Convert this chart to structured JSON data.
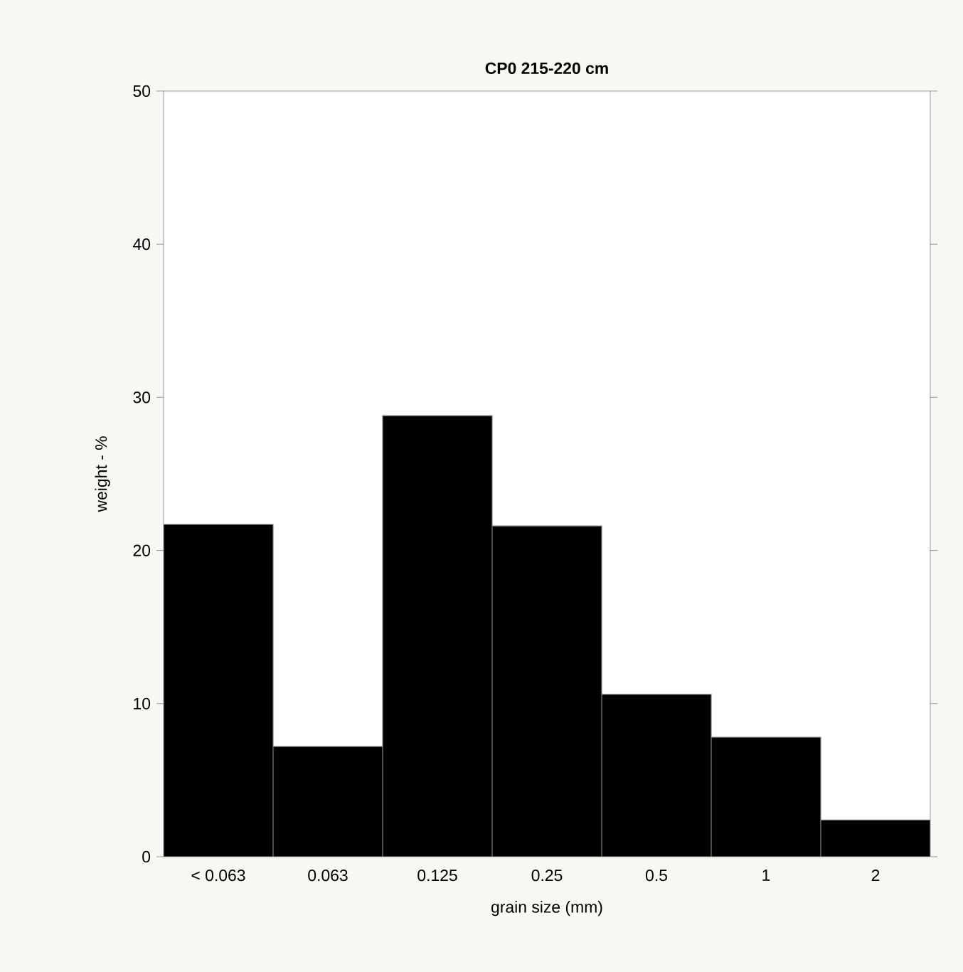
{
  "chart_data": {
    "type": "bar",
    "title": "CP0 215-220 cm",
    "xlabel": "grain size (mm)",
    "ylabel": "weight - %",
    "categories": [
      "< 0.063",
      "0.063",
      "0.125",
      "0.25",
      "0.5",
      "1",
      "2"
    ],
    "values": [
      21.7,
      7.2,
      28.8,
      21.6,
      10.6,
      7.8,
      2.4
    ],
    "color": "#000000",
    "ylim": [
      0,
      50
    ],
    "yticks": [
      0,
      10,
      20,
      30,
      40,
      50
    ],
    "grid": false
  }
}
